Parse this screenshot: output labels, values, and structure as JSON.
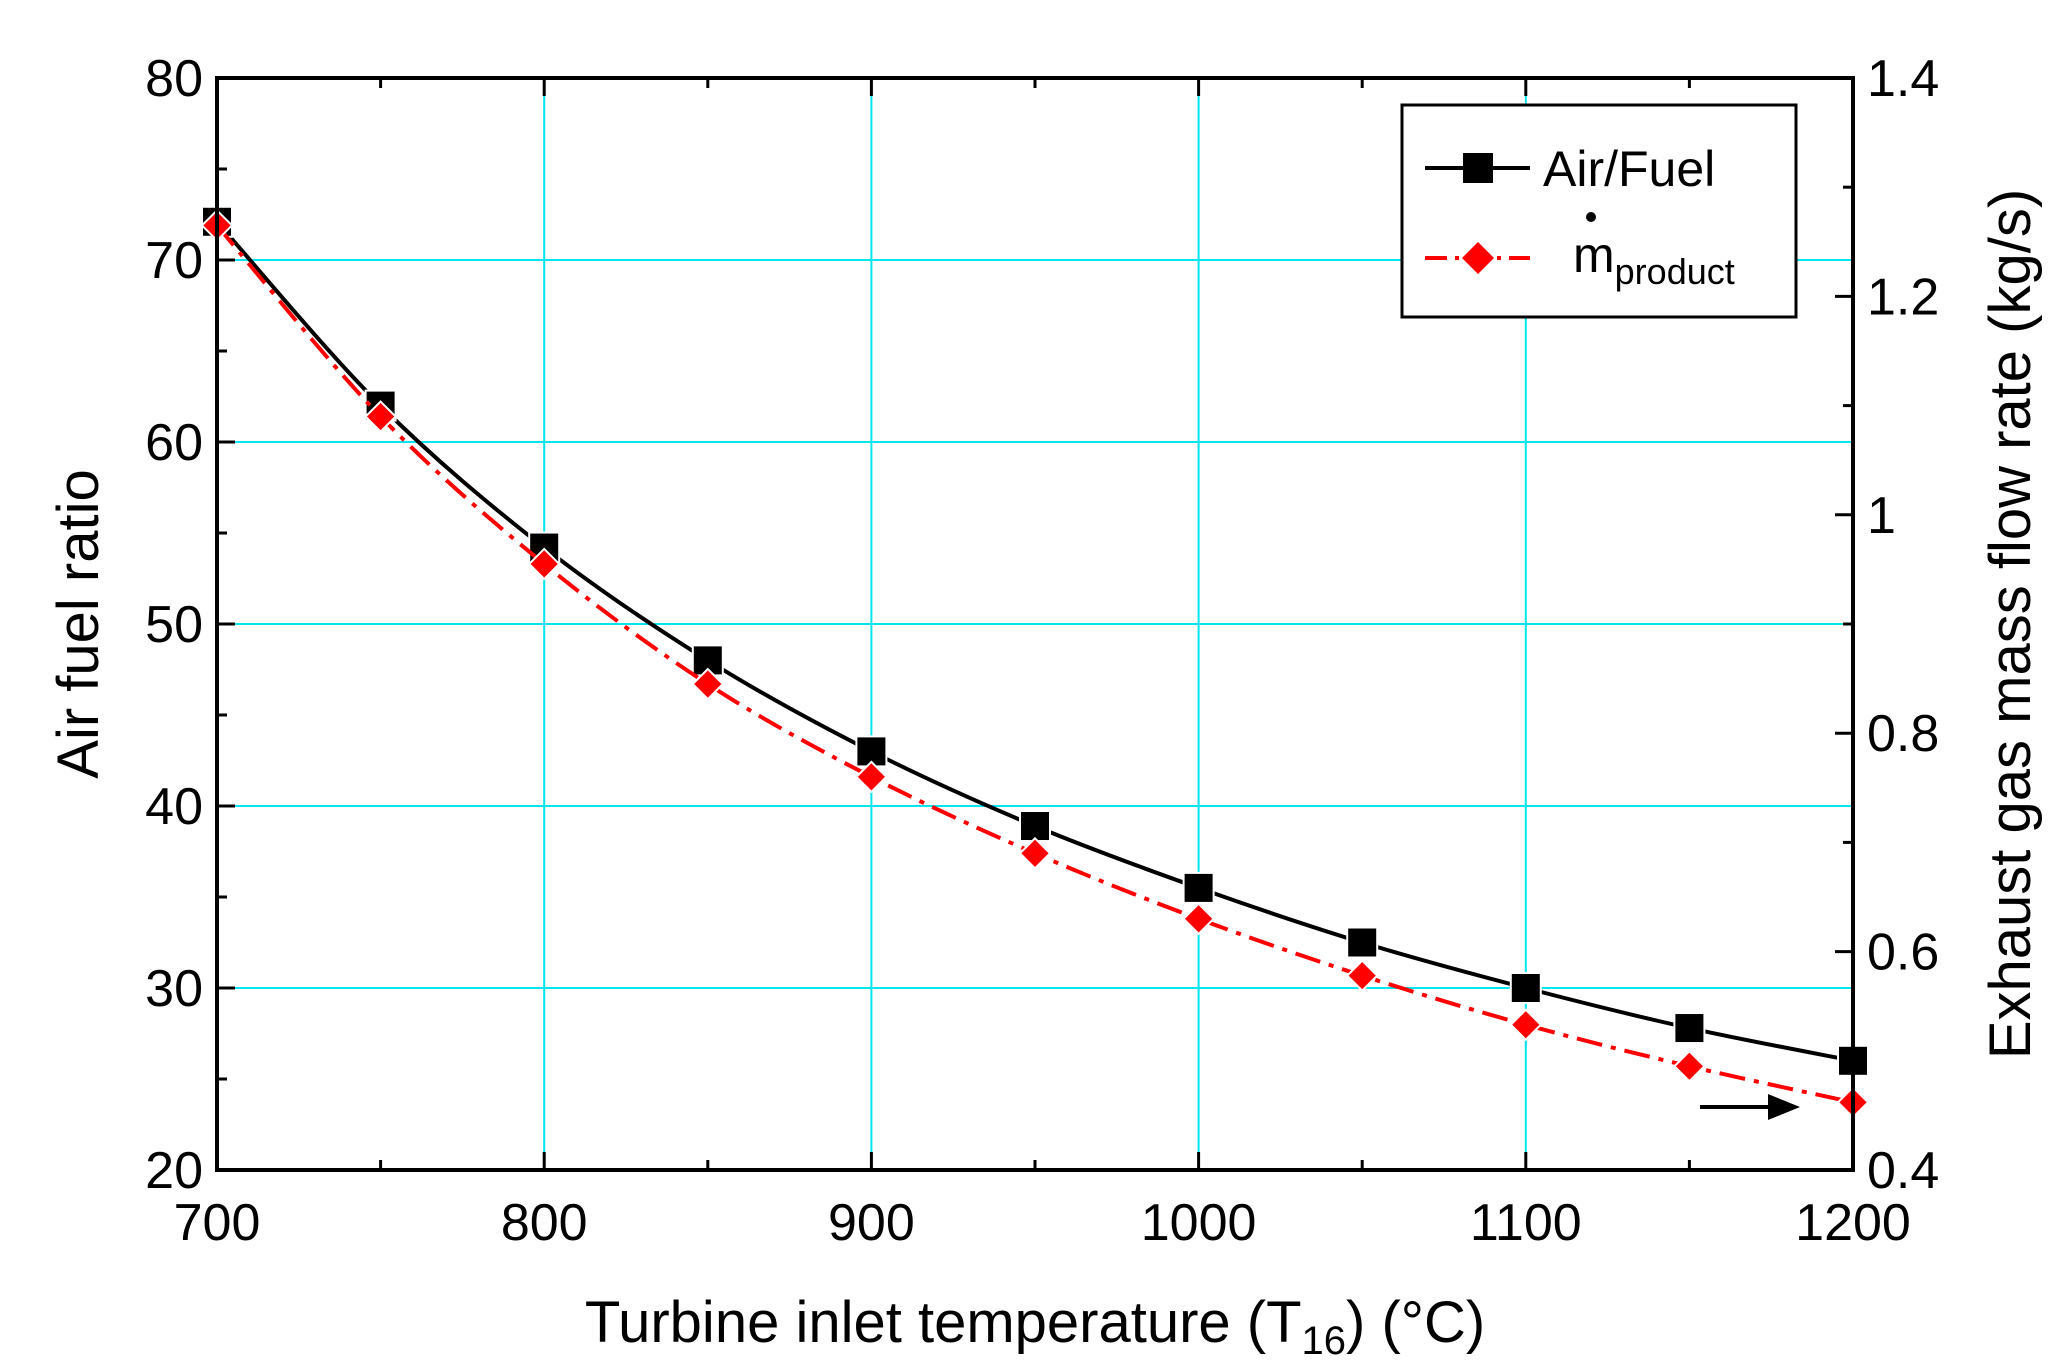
{
  "chart_data": {
    "type": "line",
    "title": "",
    "xlabel": "Turbine inlet temperature (T16) (°C)",
    "xlabel_parts": {
      "main": "Turbine inlet temperature (T",
      "sub": "16",
      "tail": ") (°C)"
    },
    "ylabel_left": "Air fuel ratio",
    "ylabel_right": "Exhaust gas mass flow rate (kg/s)",
    "xlim": [
      700,
      1200
    ],
    "ylim_left": [
      20,
      80
    ],
    "ylim_right": [
      0.4,
      1.4
    ],
    "x_ticks": [
      "700",
      "800",
      "900",
      "1000",
      "1100",
      "1200"
    ],
    "y_left_ticks": [
      "20",
      "30",
      "40",
      "50",
      "60",
      "70",
      "80"
    ],
    "y_right_ticks": [
      "0.4",
      "0.6",
      "0.8",
      "1",
      "1.2",
      "1.4"
    ],
    "grid": true,
    "grid_color": "#00e5ee",
    "legend_position": "top-right",
    "x": [
      700,
      750,
      800,
      850,
      900,
      950,
      1000,
      1050,
      1100,
      1150,
      1200
    ],
    "series": [
      {
        "name": "Air/Fuel",
        "axis": "left",
        "color": "#000000",
        "marker": "square",
        "line_style": "solid",
        "values": [
          72.1,
          62.0,
          54.2,
          48.0,
          43.0,
          38.9,
          35.5,
          32.5,
          30.0,
          27.8,
          26.0
        ]
      },
      {
        "name": "ṁproduct",
        "legend_main": "m",
        "legend_sub": "product",
        "axis": "right",
        "color": "#ff0000",
        "marker": "diamond",
        "line_style": "dash-dot",
        "values": [
          1.265,
          1.09,
          0.955,
          0.845,
          0.76,
          0.69,
          0.63,
          0.578,
          0.533,
          0.495,
          0.462
        ]
      }
    ],
    "annotations": [
      {
        "type": "arrow",
        "direction": "right",
        "meaning": "red series uses right axis"
      }
    ]
  }
}
